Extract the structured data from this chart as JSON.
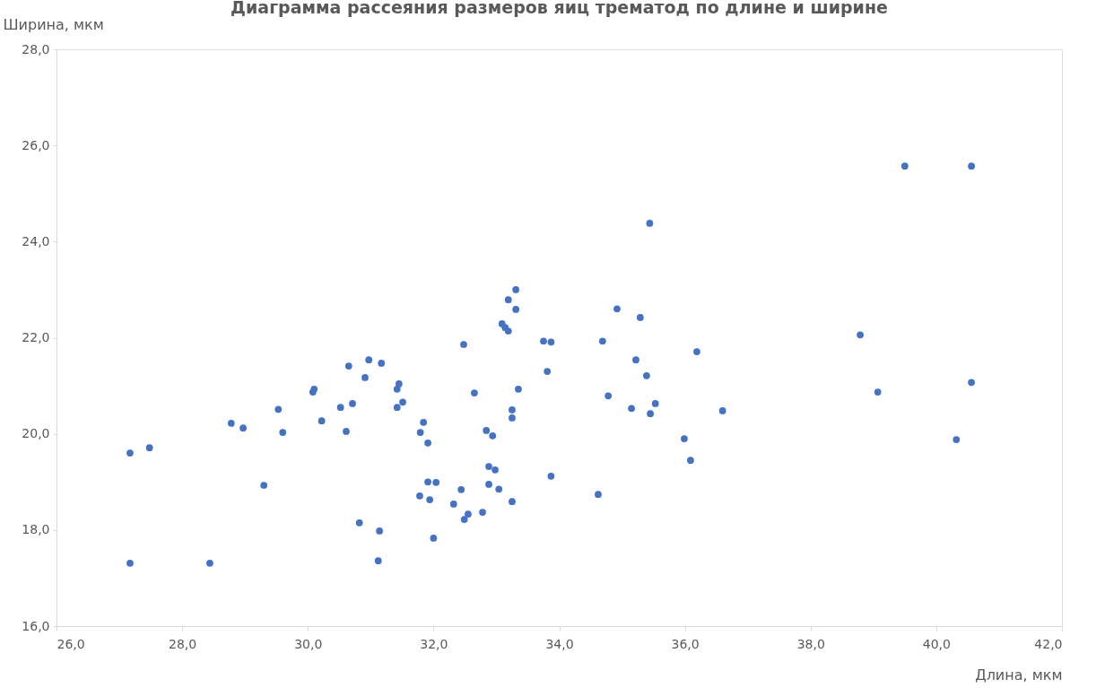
{
  "chart_data": {
    "type": "scatter",
    "title": "Диаграмма рассеяния размеров яиц трематод по длине и ширине",
    "xlabel": "Длина, мкм",
    "ylabel": "Ширина, мкм",
    "xlim": [
      26,
      42
    ],
    "ylim": [
      16,
      28
    ],
    "xticks": [
      {
        "value": 26,
        "label": "26,0"
      },
      {
        "value": 28,
        "label": "28,0"
      },
      {
        "value": 30,
        "label": "30,0"
      },
      {
        "value": 32,
        "label": "32,0"
      },
      {
        "value": 34,
        "label": "34,0"
      },
      {
        "value": 36,
        "label": "36,0"
      },
      {
        "value": 38,
        "label": "38,0"
      },
      {
        "value": 40,
        "label": "40,0"
      },
      {
        "value": 42,
        "label": "42,0"
      }
    ],
    "yticks": [
      {
        "value": 16,
        "label": "16,0"
      },
      {
        "value": 18,
        "label": "18,0"
      },
      {
        "value": 20,
        "label": "20,0"
      },
      {
        "value": 22,
        "label": "22,0"
      },
      {
        "value": 24,
        "label": "24,0"
      },
      {
        "value": 26,
        "label": "26,0"
      },
      {
        "value": 28,
        "label": "28,0"
      }
    ],
    "grid": false,
    "legend": false,
    "marker": "circle",
    "series": [
      {
        "color": "#4472c4",
        "x": [
          27.17,
          27.48,
          27.17,
          28.44,
          28.78,
          28.97,
          29.3,
          29.53,
          29.6,
          30.08,
          30.1,
          30.22,
          30.52,
          30.61,
          30.65,
          30.71,
          30.82,
          30.91,
          30.97,
          31.14,
          31.12,
          31.17,
          31.42,
          31.45,
          31.42,
          31.51,
          31.79,
          31.84,
          31.78,
          31.91,
          31.91,
          31.94,
          32.04,
          32.0,
          32.32,
          32.44,
          32.48,
          32.49,
          32.55,
          32.65,
          32.78,
          32.84,
          32.88,
          32.88,
          32.94,
          32.98,
          33.04,
          33.19,
          33.31,
          33.31,
          33.09,
          33.14,
          33.19,
          33.25,
          33.25,
          33.25,
          33.35,
          33.75,
          33.87,
          33.81,
          33.87,
          34.62,
          34.69,
          34.78,
          34.92,
          35.15,
          35.22,
          35.29,
          35.39,
          35.44,
          35.45,
          35.53,
          35.99,
          36.09,
          36.19,
          36.6,
          38.79,
          39.07,
          39.5,
          40.32,
          40.56,
          40.56
        ],
        "values": [
          19.6,
          19.71,
          17.31,
          17.31,
          20.22,
          20.12,
          18.93,
          20.51,
          20.03,
          20.87,
          20.93,
          20.27,
          20.55,
          20.05,
          21.41,
          20.63,
          18.15,
          21.17,
          21.54,
          17.98,
          17.36,
          21.47,
          20.93,
          21.04,
          20.55,
          20.66,
          20.03,
          20.24,
          18.71,
          19.81,
          19.0,
          18.63,
          18.99,
          17.83,
          18.54,
          18.84,
          21.86,
          18.22,
          18.33,
          20.85,
          18.37,
          20.07,
          19.32,
          18.95,
          19.96,
          19.25,
          18.85,
          22.79,
          23.0,
          22.59,
          22.29,
          22.21,
          22.14,
          20.5,
          20.33,
          18.59,
          20.93,
          21.93,
          21.91,
          21.3,
          19.12,
          18.74,
          21.93,
          20.79,
          22.6,
          20.53,
          21.54,
          22.42,
          21.21,
          24.38,
          20.42,
          20.63,
          19.9,
          19.45,
          21.71,
          20.48,
          22.06,
          20.87,
          25.57,
          19.88,
          25.57,
          21.07
        ]
      }
    ]
  }
}
